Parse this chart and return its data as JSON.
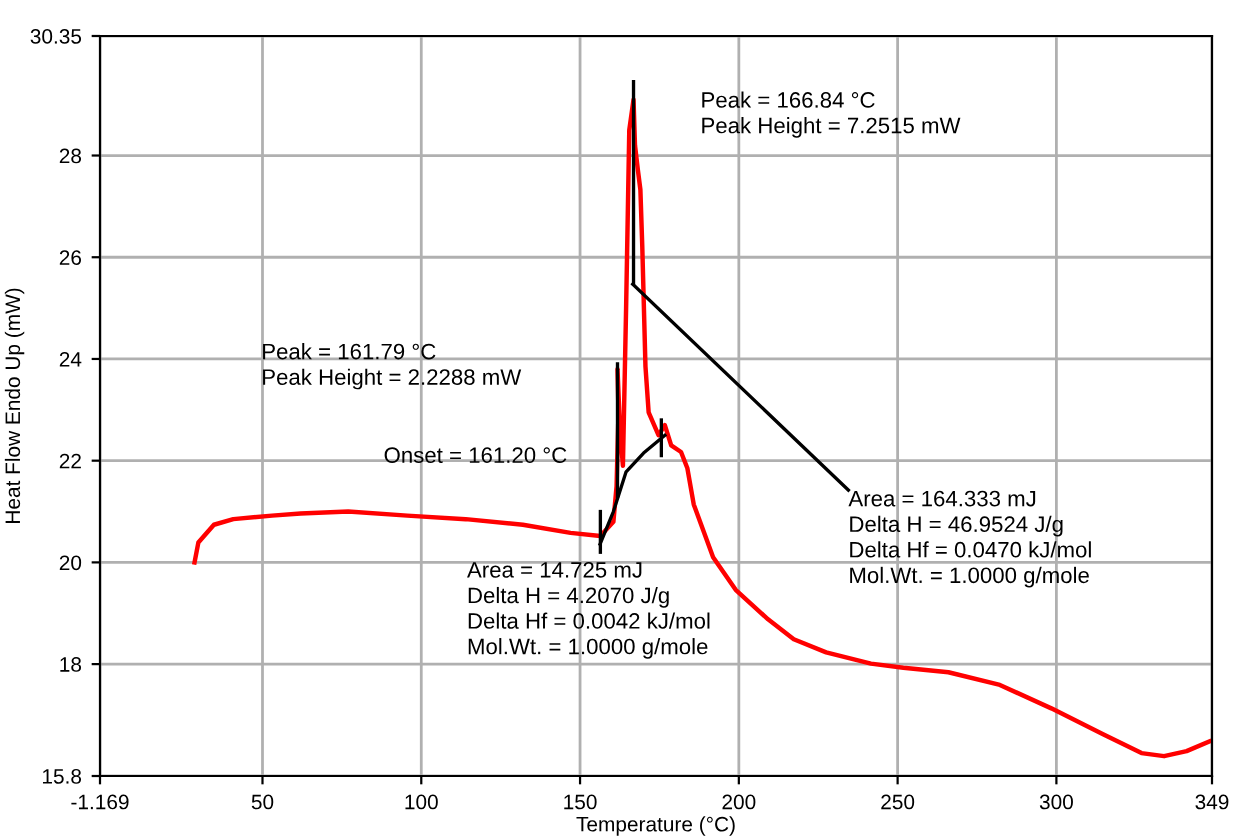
{
  "chart_data": {
    "type": "line",
    "xlabel": "Temperature (°C)",
    "ylabel": "Heat Flow Endo Up (mW)",
    "xlim": [
      -1.169,
      349
    ],
    "ylim": [
      15.8,
      30.35
    ],
    "xticks": [
      {
        "value": -1.169,
        "label": "-1.169"
      },
      50,
      100,
      150,
      200,
      250,
      300,
      349
    ],
    "yticks": [
      15.8,
      18,
      20,
      22,
      24,
      26,
      28,
      30.35
    ],
    "grid": true,
    "marker": "none",
    "line_style": "solid",
    "series": [
      {
        "color": "#ff0000",
        "x": [
          28.6,
          29.8,
          34.7,
          40.8,
          53,
          62,
          77,
          95.6,
          114,
          132,
          147,
          156.4,
          160.5,
          161.5,
          162.1,
          161.79,
          162.6,
          163.5,
          164.5,
          165.5,
          166.84,
          167.3,
          168.2,
          169,
          169.6,
          170.6,
          171.6,
          174.7,
          176.7,
          178.7,
          181.8,
          183.8,
          185.8,
          191.9,
          199,
          209.2,
          217.3,
          227.5,
          241.6,
          251.8,
          266,
          282.2,
          298.4,
          314.7,
          326.8,
          333.9,
          341,
          348.2
        ],
        "values": [
          20.0,
          20.39,
          20.74,
          20.85,
          20.92,
          20.96,
          21.0,
          20.92,
          20.85,
          20.74,
          20.58,
          20.52,
          20.8,
          21.5,
          22.95,
          23.8,
          22.6,
          21.9,
          25.0,
          28.5,
          29.1,
          28.2,
          27.72,
          27.33,
          26.2,
          23.85,
          22.95,
          22.5,
          22.7,
          22.3,
          22.17,
          21.85,
          21.14,
          20.1,
          19.46,
          18.88,
          18.49,
          18.23,
          18.01,
          17.93,
          17.84,
          17.59,
          17.13,
          16.62,
          16.25,
          16.19,
          16.29,
          16.48
        ]
      },
      {
        "color": "#000000",
        "x": [
          156.3,
          160.5,
          164.5,
          170,
          176.7
        ],
        "values": [
          20.36,
          21.0,
          21.78,
          22.15,
          22.5
        ]
      },
      {
        "color": "#000000",
        "x": [
          166.6,
          234.5
        ],
        "values": [
          25.47,
          21.42
        ]
      },
      {
        "color": "#000000",
        "x": [
          156.4,
          156.4
        ],
        "values": [
          20.2,
          21.0
        ]
      },
      {
        "color": "#000000",
        "x": [
          161.79,
          161.79
        ],
        "values": [
          21.3,
          23.9
        ]
      },
      {
        "color": "#000000",
        "x": [
          166.84,
          166.84
        ],
        "values": [
          25.47,
          29.45
        ]
      },
      {
        "color": "#000000",
        "x": [
          175.6,
          175.6
        ],
        "values": [
          22.1,
          22.8
        ]
      }
    ],
    "annotations": [
      "Peak = 166.84 °C\nPeak Height = 7.2515 mW",
      "Peak = 161.79 °C\nPeak Height = 2.2288 mW",
      "Onset = 161.20 °C",
      "Area = 14.725 mJ\nDelta H = 4.2070 J/g\nDelta Hf = 0.0042 kJ/mol\nMol.Wt. = 1.0000 g/mole",
      {
        "text": "Area = 164.333 mJ\nDelta H = 46.9524 J/g\nDelta Hf = 0.0470 kJ/mol\nMol.Wt. = 1.0000 g/mole",
        "x": 234.5,
        "y": 21.42
      }
    ]
  }
}
